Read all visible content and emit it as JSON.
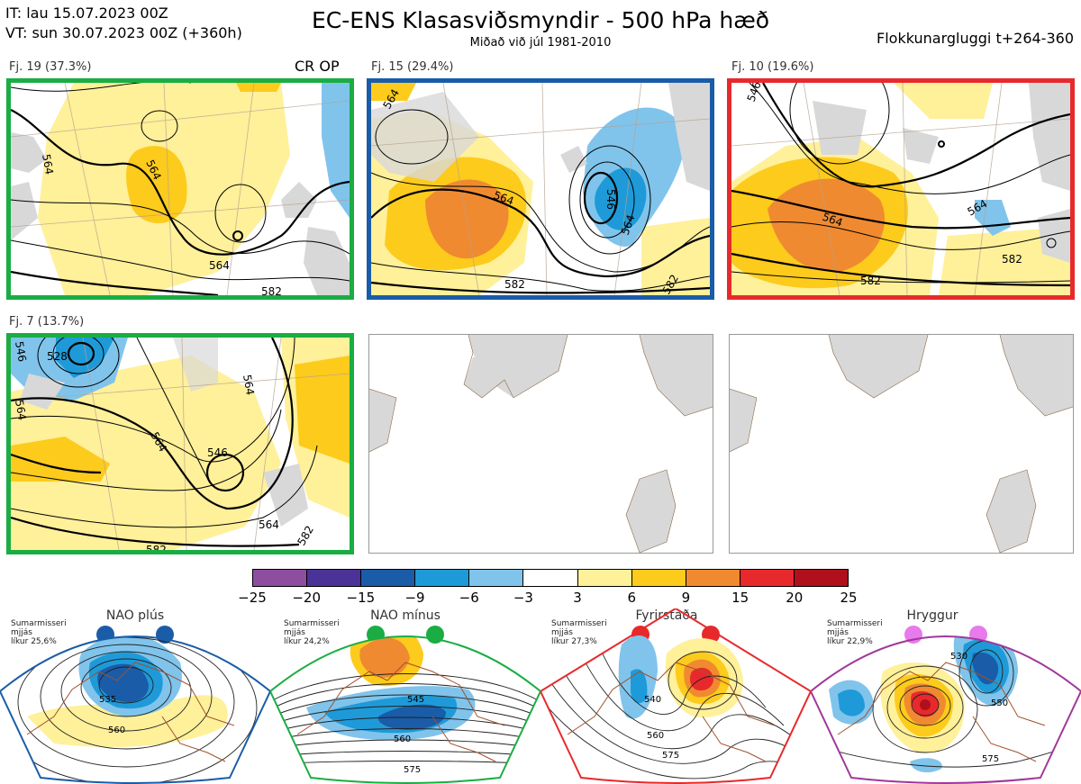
{
  "header": {
    "it_line": "IT: lau 15.07.2023 00Z",
    "vt_line": "VT: sun 30.07.2023 00Z  (+360h)",
    "title": "EC-ENS Klasasviðsmyndir - 500 hPa hæð",
    "subtitle": "Miðað við júl 1981-2010",
    "window": "Flokkunargluggi t+264-360"
  },
  "panels": [
    {
      "label": "Fj. 19 (37.3%)",
      "border": "#1aad43",
      "tag": "CR OP",
      "contour_labels": [
        "564",
        "564",
        "564",
        "582"
      ]
    },
    {
      "label": "Fj. 15 (29.4%)",
      "border": "#1a5ca8",
      "contour_labels": [
        "564",
        "564",
        "546",
        "564",
        "582",
        "582"
      ]
    },
    {
      "label": "Fj. 10 (19.6%)",
      "border": "#e8292c",
      "contour_labels": [
        "546",
        "564",
        "564",
        "582",
        "582"
      ]
    },
    {
      "label": "Fj. 7 (13.7%)",
      "border": "#1aad43",
      "contour_labels": [
        "528",
        "546",
        "564",
        "564",
        "546",
        "564",
        "582",
        "582",
        "564"
      ]
    }
  ],
  "colorbar": {
    "labels": [
      "−25",
      "−20",
      "−15",
      "−9",
      "−6",
      "−3",
      "3",
      "6",
      "9",
      "15",
      "20",
      "25"
    ],
    "colors": [
      "#8d4ea0",
      "#4b3296",
      "#1a5ca8",
      "#1f9ad8",
      "#80c4ec",
      "#ffffff",
      "#fff09a",
      "#fccb1c",
      "#f08a30",
      "#e8292c",
      "#b0101c"
    ]
  },
  "regimes": [
    {
      "title": "NAO plús",
      "line1": "Sumarmisseri",
      "line2": "mjjás",
      "line3": "líkur 25,6%",
      "color": "#1a5ca8",
      "contour_labels": [
        "535",
        "560"
      ]
    },
    {
      "title": "NAO mínus",
      "line1": "Sumarmisseri",
      "line2": "mjjás",
      "line3": "líkur 24,2%",
      "color": "#1aad43",
      "contour_labels": [
        "545",
        "560",
        "575"
      ]
    },
    {
      "title": "Fyrirstaða",
      "line1": "Sumarmisseri",
      "line2": "mjjás",
      "line3": "líkur 27,3%",
      "color": "#e8292c",
      "contour_labels": [
        "540",
        "560",
        "575"
      ]
    },
    {
      "title": "Hryggur",
      "line1": "Sumarmisseri",
      "line2": "mjjás",
      "line3": "líkur 22,9%",
      "color": "#a0389a",
      "contour_labels": [
        "530",
        "550",
        "575"
      ]
    }
  ]
}
